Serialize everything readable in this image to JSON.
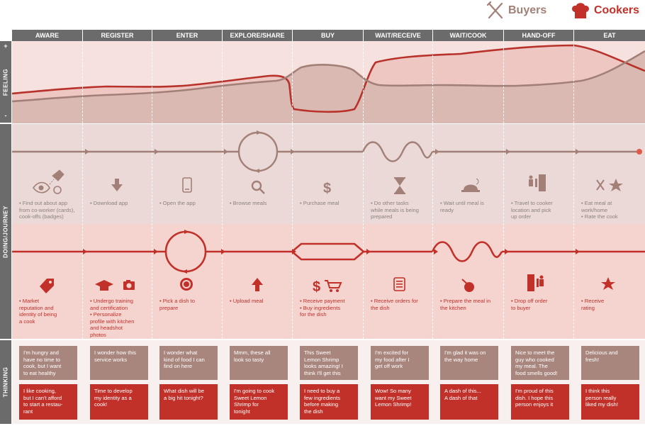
{
  "legend": {
    "buyers": "Buyers",
    "cookers": "Cookers"
  },
  "colors": {
    "buyer": "#a38077",
    "cooker": "#c1312a",
    "header": "#6b6b6b"
  },
  "rows": {
    "feeling": "FEELING",
    "doing": "DOING/JOURNEY",
    "thinking": "THINKING",
    "plus": "+",
    "minus": "-"
  },
  "stages": [
    "AWARE",
    "REGISTER",
    "ENTER",
    "EXPLORE/SHARE",
    "BUY",
    "WAIT/RECEIVE",
    "WAIT/COOK",
    "HAND-OFF",
    "EAT"
  ],
  "buyer_icons": [
    "eye-tag-icon",
    "download-icon",
    "phone-icon",
    "search-icon",
    "dollar-icon",
    "hourglass-icon",
    "cloche-icon",
    "door-person-icon",
    "fork-knife-star-icon"
  ],
  "cooker_icons": [
    "tag-icon",
    "graduation-camera-icon",
    "record-icon",
    "upload-icon",
    "dollar-cart-icon",
    "list-icon",
    "stir-icon",
    "door-exit-icon",
    "star-icon"
  ],
  "buyer_actions": [
    [
      "• Find out about app",
      "from co-worker (cards),",
      "cook-offs (badges)"
    ],
    [
      "• Download app"
    ],
    [
      "• Open the app"
    ],
    [
      "• Browse meals"
    ],
    [
      "• Purchase meal"
    ],
    [
      "• Do other tasks",
      "while meals is being",
      "prepared"
    ],
    [
      "• Wait until meal is",
      "ready"
    ],
    [
      "• Travel to cooker",
      "location and pick",
      "up order"
    ],
    [
      "• Eat meal at",
      "work/home",
      "• Rate the cook"
    ]
  ],
  "cooker_actions": [
    [
      "• Market",
      "reputation and",
      "identity of being",
      "a cook"
    ],
    [
      "• Undergo training",
      "and certification",
      "• Personalize",
      "profile with kitchen",
      "and headshot",
      "photos"
    ],
    [
      "• Pick a dish to",
      "prepare"
    ],
    [
      "• Upload meal"
    ],
    [
      "• Receive payment",
      "• Buy ingredients",
      "for the dish"
    ],
    [
      "• Receive orders for",
      "the dish"
    ],
    [
      "• Prepare the meal in",
      "the kitchen"
    ],
    [
      "• Drop off order",
      "to buyer"
    ],
    [
      "• Receive",
      "rating"
    ]
  ],
  "buyer_thoughts": [
    [
      "I'm hungry and",
      "have no time to",
      "cook, but I want",
      "to eat healthy"
    ],
    [
      "I wonder how this",
      "service works"
    ],
    [
      "I wonder what",
      "kind of food I can",
      "find on here"
    ],
    [
      "Mmm, these all",
      "look so tasty"
    ],
    [
      "This Sweet",
      "Lemon Shrimp",
      "looks amazing! I",
      "think I'll get this"
    ],
    [
      "I'm excited for",
      "my food after I",
      "get off work"
    ],
    [
      "I'm glad it was on",
      "the way home"
    ],
    [
      "Nice to meet the",
      "guy who cooked",
      "my meal. The",
      "food smells good!"
    ],
    [
      "Delicious and",
      "fresh!"
    ]
  ],
  "cooker_thoughts": [
    [
      "I like cooking,",
      "but I can't afford",
      "to start a restau-",
      "rant"
    ],
    [
      "Time to develop",
      "my identity as a",
      "cook!"
    ],
    [
      "What dish will be",
      "a big hit tonight?"
    ],
    [
      "I'm going to cook",
      "Sweet Lemon",
      "Shrimp for",
      "tonight"
    ],
    [
      "I need to buy a",
      "few ingredients",
      "before making",
      "the dish"
    ],
    [
      "Wow! So many",
      "want my Sweet",
      "Lemon Shrimp!"
    ],
    [
      "A dash of this...",
      "A dash of that"
    ],
    [
      "I'm proud of this",
      "dish. I hope this",
      "person enjoys it"
    ],
    [
      "I think this",
      "person really",
      "liked my dish!"
    ]
  ]
}
